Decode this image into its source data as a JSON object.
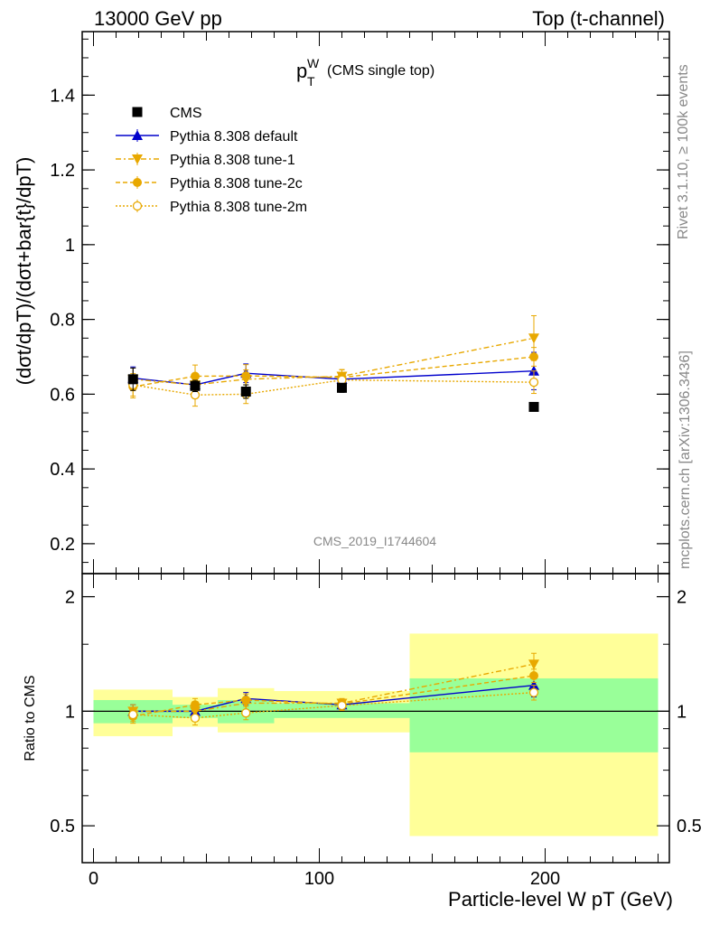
{
  "header": {
    "left": "13000 GeV pp",
    "right": "Top (t-channel)"
  },
  "plot_title": {
    "main": "p",
    "sup": "W",
    "sub": "T",
    "rest": "(CMS single top)"
  },
  "watermark": "CMS_2019_I1744604",
  "side_label_top": "Rivet 3.1.10, ≥ 100k events",
  "side_label_bottom": "mcplots.cern.ch [arXiv:1306.3436]",
  "y_label_main": "(dσt/dpT)/(dσt+bar{t}/dpT)",
  "y_label_ratio": "Ratio to CMS",
  "x_label": "Particle-level W pT (GeV)",
  "colors": {
    "cms": "#000000",
    "default": "#0000cc",
    "tunes": "#e8a800",
    "band_inner": "#99ff99",
    "band_outer": "#ffff99"
  },
  "chart_data": [
    {
      "type": "scatter",
      "panel": "main",
      "xlim": [
        -5,
        255
      ],
      "ylim": [
        0.12,
        1.57
      ],
      "yticks": [
        0.2,
        0.4,
        0.6,
        0.8,
        1,
        1.2,
        1.4
      ],
      "ytick_labels": [
        "0.2",
        "0.4",
        "0.6",
        "0.8",
        "1",
        "1.2",
        "1.4"
      ],
      "x": [
        17.5,
        45,
        67.5,
        110,
        195
      ],
      "x_edges": [
        0,
        35,
        55,
        80,
        140,
        250
      ],
      "series": [
        {
          "name": "CMS",
          "values": [
            0.64,
            0.622,
            0.607,
            0.617,
            0.566
          ],
          "errors": [
            0.03,
            0.015,
            0.018,
            0.012,
            0.005
          ]
        },
        {
          "name": "Pythia 8.308 default",
          "values": [
            0.643,
            0.625,
            0.656,
            0.64,
            0.662
          ],
          "errors": [
            0.03,
            0.018,
            0.025,
            0.018,
            0.05
          ]
        },
        {
          "name": "Pythia 8.308 tune-1",
          "values": [
            0.64,
            0.625,
            0.64,
            0.648,
            0.75
          ],
          "errors": [
            0.03,
            0.018,
            0.025,
            0.018,
            0.06
          ]
        },
        {
          "name": "Pythia 8.308 tune-2c",
          "values": [
            0.62,
            0.648,
            0.649,
            0.645,
            0.7
          ],
          "errors": [
            0.03,
            0.03,
            0.03,
            0.02,
            0.025
          ]
        },
        {
          "name": "Pythia 8.308 tune-2m",
          "values": [
            0.625,
            0.598,
            0.6,
            0.638,
            0.632
          ],
          "errors": [
            0.03,
            0.03,
            0.025,
            0.018,
            0.03
          ]
        }
      ],
      "legend": "top-left"
    },
    {
      "type": "line",
      "panel": "ratio",
      "ylabel": "Ratio to CMS",
      "xlabel": "Particle-level W pT (GeV)",
      "xlim": [
        -5,
        255
      ],
      "xticks": [
        0,
        100,
        200
      ],
      "xtick_labels": [
        "0",
        "100",
        "200"
      ],
      "ylog": true,
      "ylim": [
        0.4,
        2.3
      ],
      "yticks": [
        0.5,
        1,
        2
      ],
      "ytick_labels": [
        "0.5",
        "1",
        "2"
      ],
      "x": [
        17.5,
        45,
        67.5,
        110,
        195
      ],
      "x_edges": [
        0,
        35,
        55,
        80,
        140,
        250
      ],
      "band_inner": [
        [
          0.93,
          1.07
        ],
        [
          0.96,
          1.04
        ],
        [
          0.93,
          1.07
        ],
        [
          0.96,
          1.05
        ],
        [
          0.78,
          1.22
        ]
      ],
      "band_outer": [
        [
          0.86,
          1.14
        ],
        [
          0.91,
          1.09
        ],
        [
          0.88,
          1.15
        ],
        [
          0.88,
          1.13
        ],
        [
          0.47,
          1.6
        ]
      ],
      "series": [
        {
          "name": "Pythia 8.308 default",
          "values": [
            1.0,
            1.0,
            1.08,
            1.04,
            1.17
          ],
          "errors": [
            0.04,
            0.03,
            0.04,
            0.03,
            0.08
          ]
        },
        {
          "name": "Pythia 8.308 tune-1",
          "values": [
            1.0,
            1.0,
            1.05,
            1.05,
            1.33
          ],
          "errors": [
            0.04,
            0.03,
            0.04,
            0.03,
            0.09
          ]
        },
        {
          "name": "Pythia 8.308 tune-2c",
          "values": [
            0.97,
            1.04,
            1.07,
            1.045,
            1.24
          ],
          "errors": [
            0.04,
            0.04,
            0.04,
            0.03,
            0.05
          ]
        },
        {
          "name": "Pythia 8.308 tune-2m",
          "values": [
            0.98,
            0.96,
            0.99,
            1.035,
            1.12
          ],
          "errors": [
            0.04,
            0.04,
            0.04,
            0.03,
            0.05
          ]
        }
      ]
    }
  ]
}
